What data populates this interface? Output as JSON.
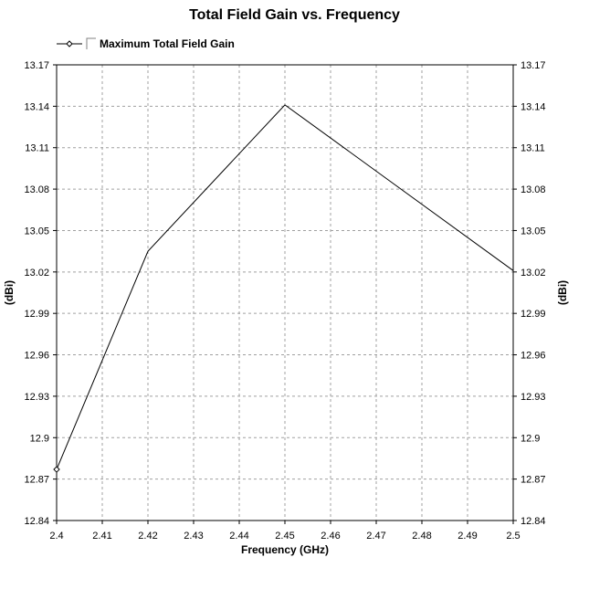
{
  "chart_data": {
    "type": "line",
    "title": "Total Field Gain vs. Frequency",
    "xlabel": "Frequency (GHz)",
    "ylabel": "(dBi)",
    "ylabel_right": "(dBi)",
    "xlim": [
      2.4,
      2.5
    ],
    "ylim": [
      12.84,
      13.17
    ],
    "xticks": [
      "2.4",
      "2.41",
      "2.42",
      "2.43",
      "2.44",
      "2.45",
      "2.46",
      "2.47",
      "2.48",
      "2.49",
      "2.5"
    ],
    "yticks": [
      "13.17",
      "13.14",
      "13.11",
      "13.08",
      "13.05",
      "13.02",
      "12.99",
      "12.96",
      "12.93",
      "12.9",
      "12.87",
      "12.84"
    ],
    "grid": true,
    "legend_position": "top-left",
    "series": [
      {
        "name": "Maximum Total Field Gain",
        "color": "#000000",
        "x": [
          2.4,
          2.42,
          2.45,
          2.5
        ],
        "y": [
          12.877,
          13.035,
          13.141,
          13.021
        ]
      }
    ]
  }
}
